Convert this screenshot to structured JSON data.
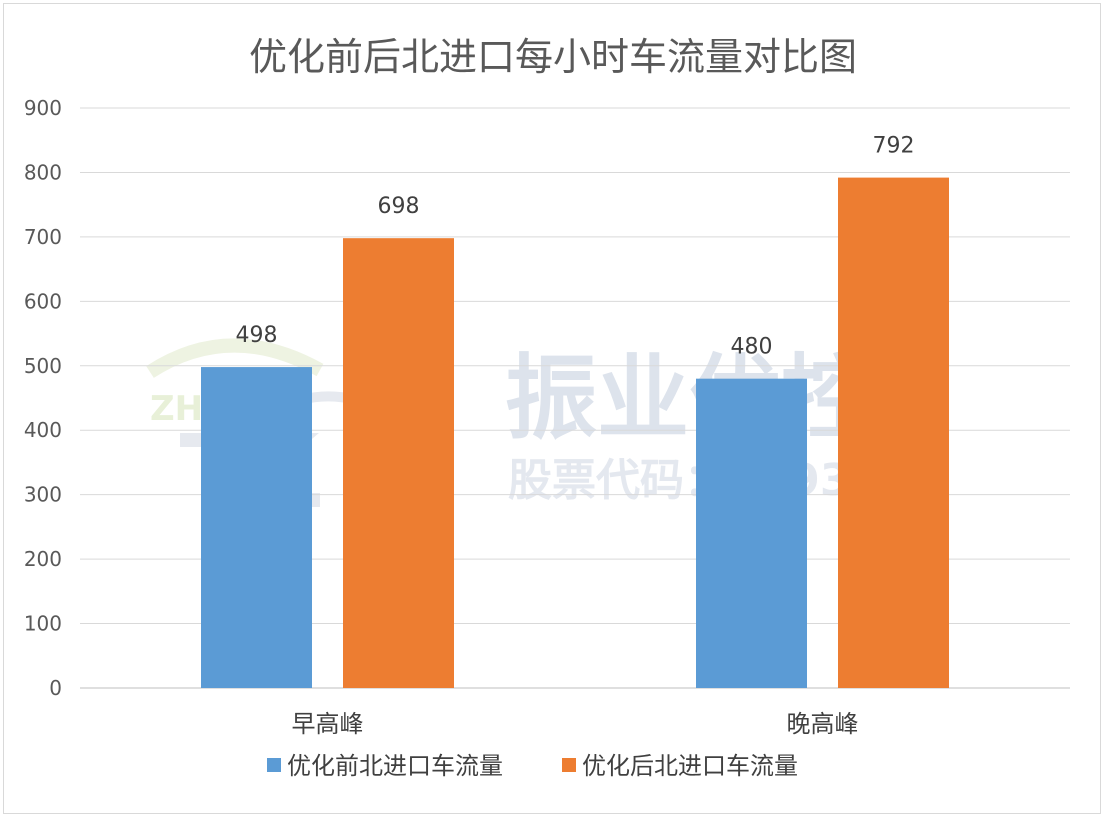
{
  "chart_data": {
    "type": "bar",
    "title": "优化前后北进口每小时车流量对比图",
    "categories": [
      "早高峰",
      "晚高峰"
    ],
    "series": [
      {
        "name": "优化前北进口车流量",
        "values": [
          498,
          480
        ],
        "color": "#5b9bd5"
      },
      {
        "name": "优化后北进口车流量",
        "values": [
          698,
          792
        ],
        "color": "#ed7d31"
      }
    ],
    "ylim": [
      0,
      900
    ],
    "yticks": [
      0,
      100,
      200,
      300,
      400,
      500,
      600,
      700,
      800,
      900
    ],
    "grid": true,
    "legend_position": "bottom",
    "xlabel": "",
    "ylabel": ""
  },
  "watermark": {
    "logo_text": "ZHENYE",
    "brand": "振业优控",
    "stock_code": "股票代码：839376"
  }
}
